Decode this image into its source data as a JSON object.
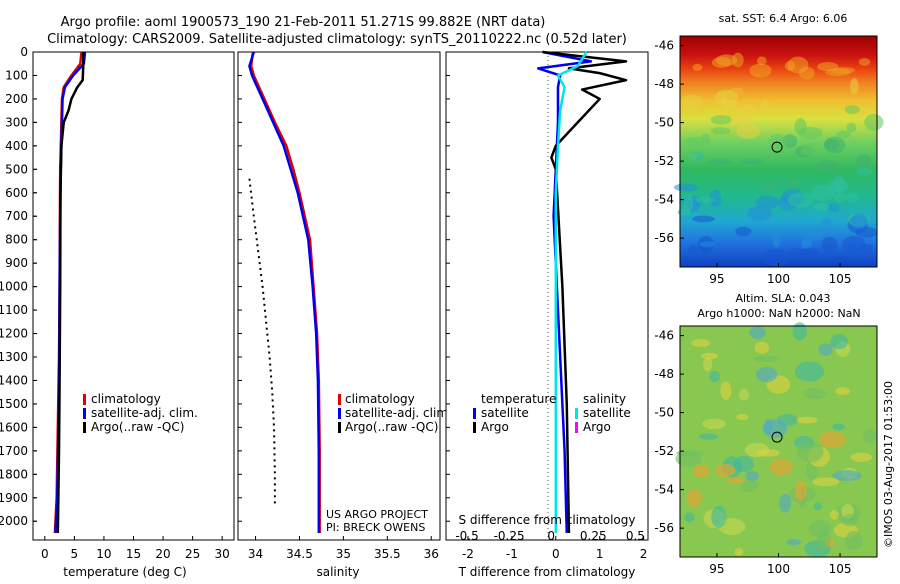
{
  "title_line1": "Argo profile: aoml 1900573_190 21-Feb-2011 51.271S 99.882E (NRT data)",
  "title_line2": "Climatology: CARS2009. Satellite-adjusted climatology: synTS_20110222.nc (0.52d later)",
  "watermark": "©IMOS 03-Aug-2017 01:53:00",
  "colors": {
    "climatology": "#e00000",
    "satellite": "#0000ee",
    "argo": "#000000",
    "satellite_salinity": "#00e5e5",
    "argo_salinity": "#ff00ff"
  },
  "depth_ticks": [
    0,
    100,
    200,
    300,
    400,
    500,
    600,
    700,
    800,
    900,
    1000,
    1100,
    1200,
    1300,
    1400,
    1500,
    1600,
    1700,
    1800,
    1900,
    2000
  ],
  "chart_data": [
    {
      "type": "line",
      "id": "temperature",
      "xlabel": "temperature (deg C)",
      "xlim": [
        -2,
        32
      ],
      "ylim": [
        0,
        2080
      ],
      "xticks": [
        0,
        5,
        10,
        15,
        20,
        25,
        30
      ],
      "legend": [
        "climatology",
        "satellite-adj. clim.",
        "Argo(..raw -QC)"
      ],
      "legend_placement": "lower-center",
      "series": [
        {
          "name": "climatology",
          "color": "#e00000",
          "x": [
            6.2,
            6.0,
            4.5,
            3.2,
            2.9,
            2.8,
            2.7,
            2.6,
            2.55,
            2.5,
            2.4,
            2.2,
            2.0,
            1.7
          ],
          "y": [
            0,
            50,
            100,
            150,
            200,
            300,
            400,
            500,
            700,
            1000,
            1300,
            1600,
            1900,
            2050
          ]
        },
        {
          "name": "satellite-adj. clim.",
          "color": "#0000ee",
          "x": [
            6.8,
            6.6,
            4.8,
            3.4,
            3.0,
            2.9,
            2.8,
            2.7,
            2.6,
            2.5,
            2.45,
            2.3,
            2.1,
            1.8
          ],
          "y": [
            0,
            50,
            100,
            150,
            200,
            300,
            400,
            500,
            700,
            1000,
            1300,
            1600,
            1900,
            2050
          ]
        },
        {
          "name": "Argo(..raw -QC)",
          "color": "#000000",
          "x": [
            6.5,
            6.5,
            6.4,
            5.5,
            4.5,
            4.0,
            3.2,
            2.8,
            2.65,
            2.6,
            2.5,
            2.4,
            2.2
          ],
          "y": [
            0,
            60,
            120,
            150,
            200,
            250,
            300,
            400,
            600,
            1000,
            1400,
            1700,
            2050
          ]
        }
      ]
    },
    {
      "type": "line",
      "id": "salinity",
      "xlabel": "salinity",
      "xlim": [
        33.8,
        36.1
      ],
      "ylim": [
        0,
        2080
      ],
      "xticks": [
        34,
        34.5,
        35,
        35.5,
        36
      ],
      "legend": [
        "climatology",
        "satellite-adj. clim.",
        "Argo(..raw -QC)"
      ],
      "legend_placement": "lower-right",
      "annotation_line1": "US ARGO PROJECT",
      "annotation_line2": "PI: BRECK OWENS",
      "series": [
        {
          "name": "climatology",
          "color": "#e00000",
          "x": [
            33.97,
            33.95,
            33.98,
            34.1,
            34.22,
            34.35,
            34.43,
            34.5,
            34.56,
            34.62,
            34.66,
            34.7,
            34.72,
            34.73,
            34.73
          ],
          "y": [
            0,
            60,
            100,
            200,
            300,
            400,
            500,
            600,
            700,
            800,
            1000,
            1200,
            1400,
            1700,
            2050
          ]
        },
        {
          "name": "satellite-adj. clim.",
          "color": "#0000ee",
          "x": [
            33.98,
            33.93,
            33.96,
            34.08,
            34.2,
            34.32,
            34.4,
            34.48,
            34.54,
            34.6,
            34.65,
            34.69,
            34.71,
            34.72,
            34.72
          ],
          "y": [
            0,
            60,
            100,
            200,
            300,
            400,
            500,
            600,
            700,
            800,
            1000,
            1200,
            1400,
            1700,
            2050
          ]
        },
        {
          "name": "Argo(..raw -QC)",
          "color": "#000000",
          "dotted": true,
          "x": [
            33.93,
            33.98,
            34.03,
            34.08,
            34.12,
            34.16,
            34.19,
            34.21,
            34.22,
            34.22
          ],
          "y": [
            540,
            700,
            850,
            1000,
            1150,
            1300,
            1450,
            1600,
            1800,
            1930
          ]
        }
      ]
    },
    {
      "type": "line",
      "id": "difference",
      "xlabel": "T difference from climatology",
      "xlabel_top": "S difference from climatology",
      "xlim": [
        -2.5,
        2.1
      ],
      "ylim": [
        0,
        2080
      ],
      "xticks": [
        -2,
        -1,
        0,
        1,
        2
      ],
      "xticks_top": [
        -0.5,
        -0.25,
        0,
        0.25,
        0.5
      ],
      "legend_temperature_title": "temperature",
      "legend_salinity_title": "salinity",
      "legend": [
        "satellite",
        "Argo",
        "satellite",
        "Argo"
      ],
      "series": [
        {
          "name": "satellite",
          "group": "temperature",
          "color": "#0000ee",
          "x": [
            -0.3,
            0.8,
            -0.4,
            0.1,
            0.05,
            0.05,
            0.0,
            -0.05,
            0.0,
            0.05,
            0.1,
            0.15,
            0.2,
            0.25
          ],
          "y": [
            0,
            40,
            70,
            100,
            150,
            300,
            500,
            700,
            900,
            1100,
            1300,
            1500,
            1700,
            2050
          ]
        },
        {
          "name": "Argo",
          "group": "temperature",
          "color": "#000000",
          "x": [
            -0.3,
            1.6,
            0.3,
            1.0,
            1.6,
            0.6,
            1.0,
            0.5,
            0.0,
            -0.1,
            0.0,
            0.15,
            0.25,
            0.3
          ],
          "y": [
            0,
            40,
            70,
            90,
            120,
            160,
            200,
            300,
            400,
            450,
            500,
            1000,
            1500,
            2050
          ]
        },
        {
          "name": "satellite",
          "group": "salinity",
          "color": "#00e5e5",
          "x": [
            0.7,
            0.5,
            0.05,
            0.2,
            0.1,
            0.05,
            0.0,
            0.0,
            0.0,
            0.0,
            0.0,
            0.0
          ],
          "y": [
            0,
            60,
            100,
            150,
            250,
            400,
            600,
            900,
            1200,
            1500,
            1800,
            2050
          ]
        },
        {
          "name": "Argo",
          "group": "salinity",
          "color": "#ff00ff",
          "x": [],
          "y": []
        }
      ]
    },
    {
      "type": "heatmap",
      "id": "sst-map",
      "title": "sat. SST: 6.4 Argo: 6.06",
      "xlim": [
        92,
        108
      ],
      "ylim": [
        -57.5,
        -45.5
      ],
      "xticks": [
        95,
        100,
        105
      ],
      "yticks": [
        -46,
        -48,
        -50,
        -52,
        -54,
        -56
      ],
      "marker": {
        "lon": 99.882,
        "lat": -51.271
      }
    },
    {
      "type": "heatmap",
      "id": "sla-map",
      "title": "Altim. SLA: 0.043",
      "subtitle": "Argo h1000: NaN h2000: NaN",
      "xlim": [
        92,
        108
      ],
      "ylim": [
        -57.5,
        -45.5
      ],
      "xticks": [
        95,
        100,
        105
      ],
      "yticks": [
        -46,
        -48,
        -50,
        -52,
        -54,
        -56
      ],
      "marker": {
        "lon": 99.882,
        "lat": -51.271
      }
    }
  ]
}
